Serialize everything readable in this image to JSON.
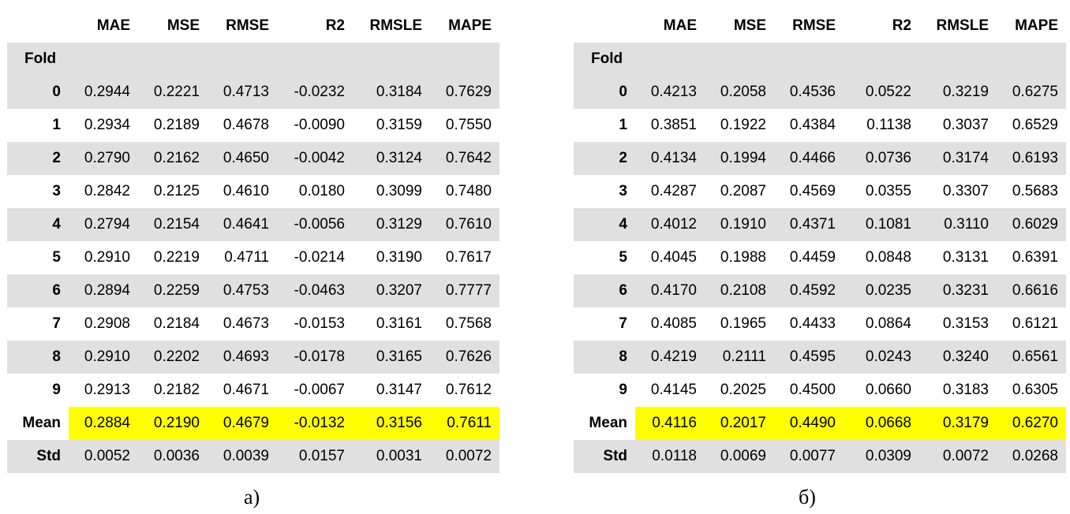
{
  "tables": [
    {
      "columns": [
        "MAE",
        "MSE",
        "RMSE",
        "R2",
        "RMSLE",
        "MAPE"
      ],
      "index_label": "Fold",
      "rows": [
        {
          "label": "0",
          "values": [
            "0.2944",
            "0.2221",
            "0.4713",
            "-0.0232",
            "0.3184",
            "0.7629"
          ]
        },
        {
          "label": "1",
          "values": [
            "0.2934",
            "0.2189",
            "0.4678",
            "-0.0090",
            "0.3159",
            "0.7550"
          ]
        },
        {
          "label": "2",
          "values": [
            "0.2790",
            "0.2162",
            "0.4650",
            "-0.0042",
            "0.3124",
            "0.7642"
          ]
        },
        {
          "label": "3",
          "values": [
            "0.2842",
            "0.2125",
            "0.4610",
            "0.0180",
            "0.3099",
            "0.7480"
          ]
        },
        {
          "label": "4",
          "values": [
            "0.2794",
            "0.2154",
            "0.4641",
            "-0.0056",
            "0.3129",
            "0.7610"
          ]
        },
        {
          "label": "5",
          "values": [
            "0.2910",
            "0.2219",
            "0.4711",
            "-0.0214",
            "0.3190",
            "0.7617"
          ]
        },
        {
          "label": "6",
          "values": [
            "0.2894",
            "0.2259",
            "0.4753",
            "-0.0463",
            "0.3207",
            "0.7777"
          ]
        },
        {
          "label": "7",
          "values": [
            "0.2908",
            "0.2184",
            "0.4673",
            "-0.0153",
            "0.3161",
            "0.7568"
          ]
        },
        {
          "label": "8",
          "values": [
            "0.2910",
            "0.2202",
            "0.4693",
            "-0.0178",
            "0.3165",
            "0.7626"
          ]
        },
        {
          "label": "9",
          "values": [
            "0.2913",
            "0.2182",
            "0.4671",
            "-0.0067",
            "0.3147",
            "0.7612"
          ]
        },
        {
          "label": "Mean",
          "values": [
            "0.2884",
            "0.2190",
            "0.4679",
            "-0.0132",
            "0.3156",
            "0.7611"
          ]
        },
        {
          "label": "Std",
          "values": [
            "0.0052",
            "0.0036",
            "0.0039",
            "0.0157",
            "0.0031",
            "0.0072"
          ]
        }
      ],
      "caption": "а)"
    },
    {
      "columns": [
        "MAE",
        "MSE",
        "RMSE",
        "R2",
        "RMSLE",
        "MAPE"
      ],
      "index_label": "Fold",
      "rows": [
        {
          "label": "0",
          "values": [
            "0.4213",
            "0.2058",
            "0.4536",
            "0.0522",
            "0.3219",
            "0.6275"
          ]
        },
        {
          "label": "1",
          "values": [
            "0.3851",
            "0.1922",
            "0.4384",
            "0.1138",
            "0.3037",
            "0.6529"
          ]
        },
        {
          "label": "2",
          "values": [
            "0.4134",
            "0.1994",
            "0.4466",
            "0.0736",
            "0.3174",
            "0.6193"
          ]
        },
        {
          "label": "3",
          "values": [
            "0.4287",
            "0.2087",
            "0.4569",
            "0.0355",
            "0.3307",
            "0.5683"
          ]
        },
        {
          "label": "4",
          "values": [
            "0.4012",
            "0.1910",
            "0.4371",
            "0.1081",
            "0.3110",
            "0.6029"
          ]
        },
        {
          "label": "5",
          "values": [
            "0.4045",
            "0.1988",
            "0.4459",
            "0.0848",
            "0.3131",
            "0.6391"
          ]
        },
        {
          "label": "6",
          "values": [
            "0.4170",
            "0.2108",
            "0.4592",
            "0.0235",
            "0.3231",
            "0.6616"
          ]
        },
        {
          "label": "7",
          "values": [
            "0.4085",
            "0.1965",
            "0.4433",
            "0.0864",
            "0.3153",
            "0.6121"
          ]
        },
        {
          "label": "8",
          "values": [
            "0.4219",
            "0.2111",
            "0.4595",
            "0.0243",
            "0.3240",
            "0.6561"
          ]
        },
        {
          "label": "9",
          "values": [
            "0.4145",
            "0.2025",
            "0.4500",
            "0.0660",
            "0.3183",
            "0.6305"
          ]
        },
        {
          "label": "Mean",
          "values": [
            "0.4116",
            "0.2017",
            "0.4490",
            "0.0668",
            "0.3179",
            "0.6270"
          ]
        },
        {
          "label": "Std",
          "values": [
            "0.0118",
            "0.0069",
            "0.0077",
            "0.0309",
            "0.0072",
            "0.0268"
          ]
        }
      ],
      "caption": "б)"
    }
  ],
  "colors": {
    "row_shade": "#e0e0e0",
    "highlight": "#ffff00"
  }
}
